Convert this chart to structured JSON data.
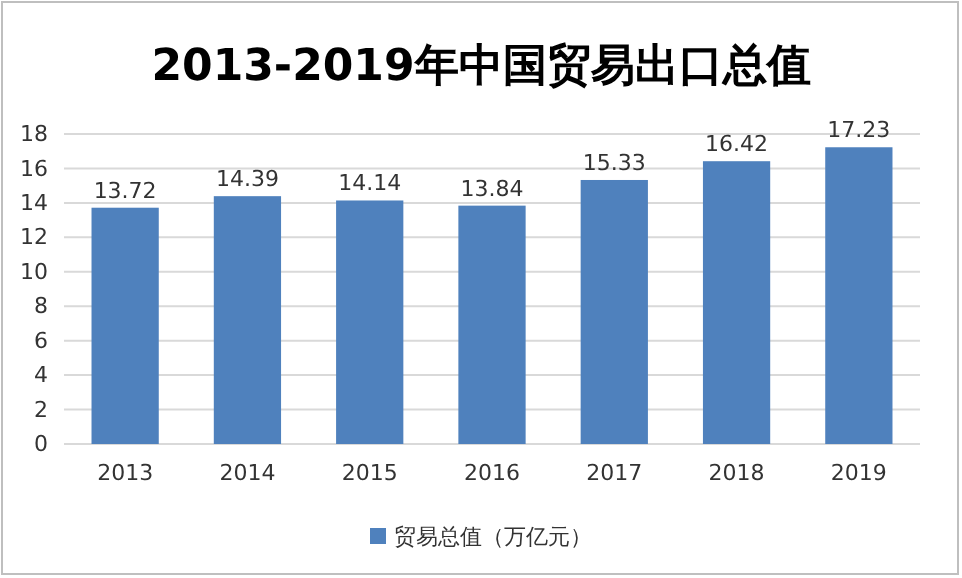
{
  "chart_data": {
    "type": "bar",
    "title": "2013-2019年中国贸易出口总值",
    "categories": [
      "2013",
      "2014",
      "2015",
      "2016",
      "2017",
      "2018",
      "2019"
    ],
    "series": [
      {
        "name": "贸易总值（万亿元）",
        "color": "#4f81bd",
        "values": [
          13.72,
          14.39,
          14.14,
          13.84,
          15.33,
          16.42,
          17.23
        ]
      }
    ],
    "ylim": [
      0,
      18
    ],
    "yticks": [
      0,
      2,
      4,
      6,
      8,
      10,
      12,
      14,
      16,
      18
    ],
    "grid": "y",
    "legend": "bottom",
    "data_labels": true
  }
}
